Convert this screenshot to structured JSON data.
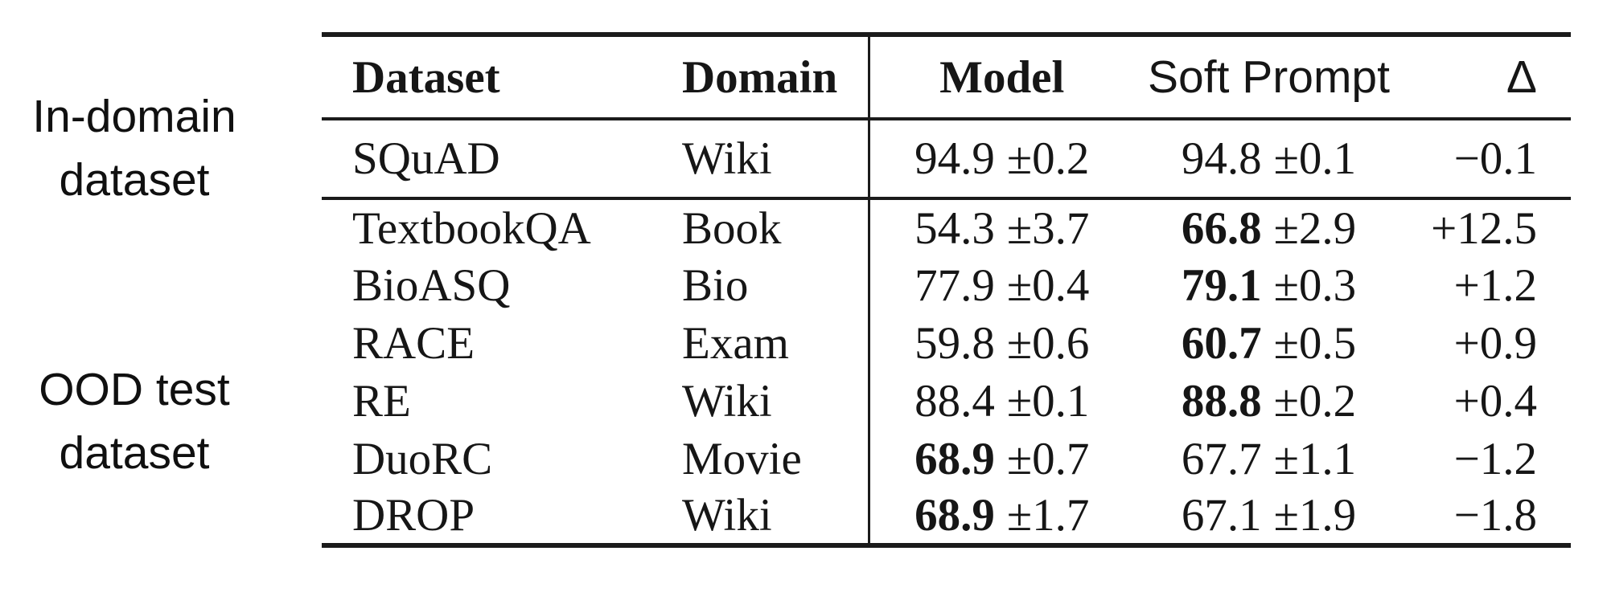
{
  "annotations": {
    "in_domain_label": {
      "line1": "In-domain",
      "line2": "dataset"
    },
    "ood_label": {
      "line1": "OOD test",
      "line2": "dataset"
    }
  },
  "table": {
    "headers": {
      "dataset": "Dataset",
      "domain": "Domain",
      "model": "Model",
      "soft_prompt": "Soft Prompt",
      "delta": "Δ"
    },
    "in_domain_rows": [
      {
        "dataset": "SQuAD",
        "domain": "Wiki",
        "model_value": "94.9",
        "model_err": "±0.2",
        "model_bold": false,
        "soft_value": "94.8",
        "soft_err": "±0.1",
        "soft_bold": false,
        "delta": "−0.1"
      }
    ],
    "ood_rows": [
      {
        "dataset": "TextbookQA",
        "domain": "Book",
        "model_value": "54.3",
        "model_err": "±3.7",
        "model_bold": false,
        "soft_value": "66.8",
        "soft_err": "±2.9",
        "soft_bold": true,
        "delta": "+12.5"
      },
      {
        "dataset": "BioASQ",
        "domain": "Bio",
        "model_value": "77.9",
        "model_err": "±0.4",
        "model_bold": false,
        "soft_value": "79.1",
        "soft_err": "±0.3",
        "soft_bold": true,
        "delta": "+1.2"
      },
      {
        "dataset": "RACE",
        "domain": "Exam",
        "model_value": "59.8",
        "model_err": "±0.6",
        "model_bold": false,
        "soft_value": "60.7",
        "soft_err": "±0.5",
        "soft_bold": true,
        "delta": "+0.9"
      },
      {
        "dataset": "RE",
        "domain": "Wiki",
        "model_value": "88.4",
        "model_err": "±0.1",
        "model_bold": false,
        "soft_value": "88.8",
        "soft_err": "±0.2",
        "soft_bold": true,
        "delta": "+0.4"
      },
      {
        "dataset": "DuoRC",
        "domain": "Movie",
        "model_value": "68.9",
        "model_err": "±0.7",
        "model_bold": true,
        "soft_value": "67.7",
        "soft_err": "±1.1",
        "soft_bold": false,
        "delta": "−1.2"
      },
      {
        "dataset": "DROP",
        "domain": "Wiki",
        "model_value": "68.9",
        "model_err": "±1.7",
        "model_bold": true,
        "soft_value": "67.1",
        "soft_err": "±1.9",
        "soft_bold": false,
        "delta": "−1.8"
      }
    ]
  },
  "colors": {
    "background": "#ffffff",
    "text": "#161616",
    "rule": "#1b1b1b"
  }
}
